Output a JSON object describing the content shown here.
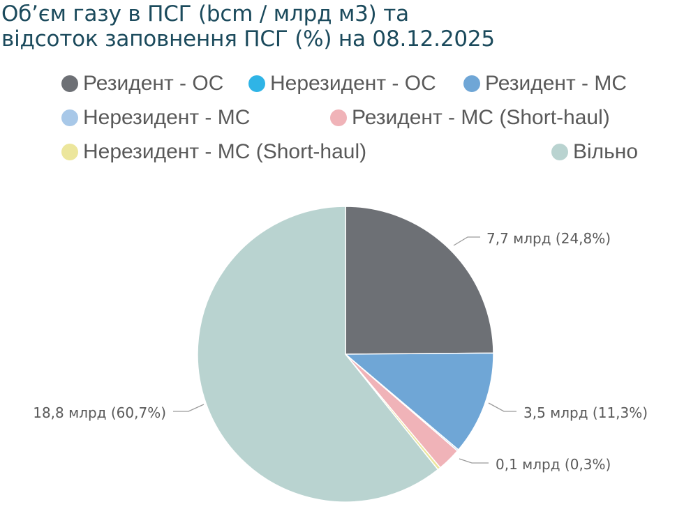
{
  "title_lines": [
    "Об’єм газу в ПСГ (bcm / млрд м3) та",
    "відсоток заповнення ПСГ (%) на 08.12.2025"
  ],
  "chart_data": {
    "type": "pie",
    "title": "Об’єм газу в ПСГ (bcm / млрд м3) та відсоток заповнення ПСГ (%) на 08.12.2025",
    "legend_position": "top",
    "slices": [
      {
        "name": "Резидент - ОС",
        "value": 7.7,
        "percent": 24.8,
        "color": "#6d7075",
        "label": "7,7 млрд (24,8%)"
      },
      {
        "name": "Нерезидент - ОС",
        "value": 0.0,
        "percent": 0.0,
        "color": "#2fb4e6",
        "label": ""
      },
      {
        "name": "Резидент - МС",
        "value": 3.5,
        "percent": 11.3,
        "color": "#6fa6d6",
        "label": "3,5 млрд (11,3%)"
      },
      {
        "name": "Нерезидент - МС",
        "value": 0.05,
        "percent": 0.2,
        "color": "#a8c8e8",
        "label": ""
      },
      {
        "name": "Резидент -  МС (Short-haul)",
        "value": 0.8,
        "percent": 2.5,
        "color": "#f0b3b8",
        "label": ""
      },
      {
        "name": "Нерезидент -  МС (Short-haul)",
        "value": 0.1,
        "percent": 0.3,
        "color": "#ece69c",
        "label": "0,1 млрд (0,3%)"
      },
      {
        "name": "Вільно",
        "value": 18.8,
        "percent": 60.7,
        "color": "#b9d3d0",
        "label": "18,8 млрд (60,7%)"
      }
    ]
  },
  "colors": {
    "title": "#1b4a5c",
    "text": "#595959",
    "leader_line": "#9a9a9a"
  }
}
